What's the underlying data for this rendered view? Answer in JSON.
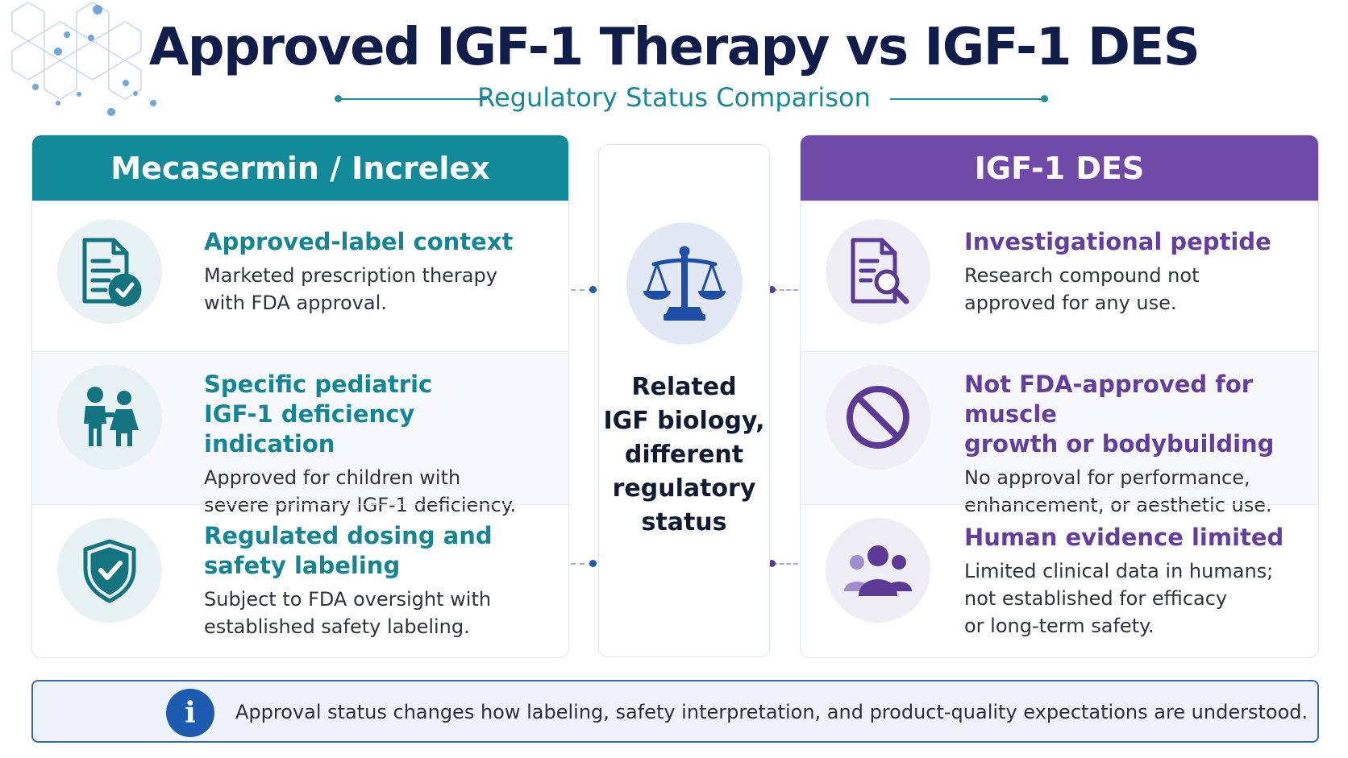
{
  "title": "Approved IGF-1 Therapy vs IGF-1 DES",
  "subtitle": "Regulatory Status Comparison",
  "colors": {
    "navy": "#101d4a",
    "teal": "#138a9a",
    "purple": "#6f4aa8",
    "info_blue": "#1d5bb0"
  },
  "left_panel": {
    "header": "Mecasermin / Increlex",
    "rows": [
      {
        "icon": "document-check-icon",
        "title": "Approved-label context",
        "desc": "Marketed prescription therapy\nwith FDA approval."
      },
      {
        "icon": "children-icon",
        "title": "Specific pediatric\nIGF-1 deficiency indication",
        "desc": "Approved for children with\nsevere primary IGF-1 deficiency."
      },
      {
        "icon": "shield-check-icon",
        "title": "Regulated dosing and\nsafety labeling",
        "desc": "Subject to FDA oversight with\nestablished safety labeling."
      }
    ]
  },
  "center": {
    "icon": "balance-scale-icon",
    "text": "Related\nIGF biology,\ndifferent\nregulatory\nstatus"
  },
  "right_panel": {
    "header": "IGF-1 DES",
    "rows": [
      {
        "icon": "document-search-icon",
        "title": "Investigational peptide",
        "desc": "Research compound not\napproved for any use."
      },
      {
        "icon": "prohibited-icon",
        "title": "Not FDA-approved for muscle\ngrowth or bodybuilding",
        "desc": "No approval for performance,\nenhancement, or aesthetic use."
      },
      {
        "icon": "people-group-icon",
        "title": "Human evidence limited",
        "desc": "Limited clinical data in humans;\nnot established for efficacy\nor long-term safety."
      }
    ]
  },
  "info": {
    "icon": "info-icon",
    "glyph": "i",
    "text": "Approval status changes how labeling, safety interpretation, and product-quality expectations are understood."
  }
}
